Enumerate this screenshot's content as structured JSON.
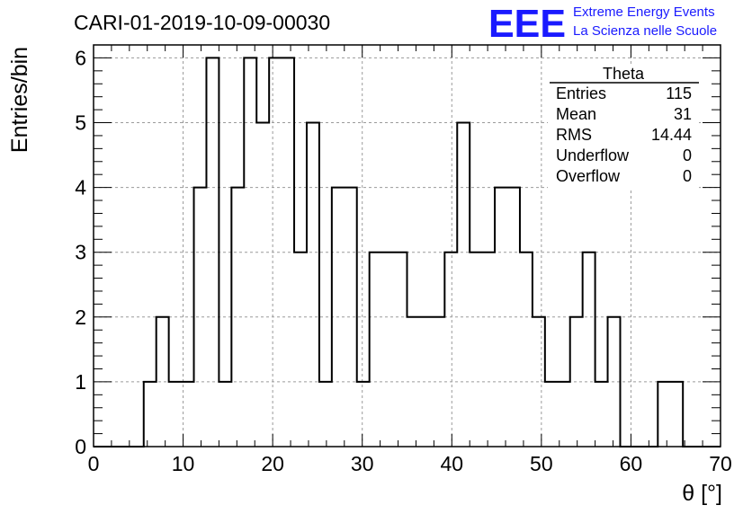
{
  "header": {
    "run_title": "CARI-01-2019-10-09-00030",
    "logo_text": "EEE",
    "logo_line1": "Extreme Energy Events",
    "logo_line2": "La Scienza nelle Scuole",
    "logo_color": "#1a1aff"
  },
  "stats_box": {
    "title": "Theta",
    "rows": [
      {
        "label": "Entries",
        "value": "115"
      },
      {
        "label": "Mean",
        "value": "31"
      },
      {
        "label": "RMS",
        "value": "14.44"
      },
      {
        "label": "Underflow",
        "value": "0"
      },
      {
        "label": "Overflow",
        "value": "0"
      }
    ]
  },
  "chart_data": {
    "type": "histogram",
    "xlabel": "θ [°]",
    "ylabel": "Entries/bin",
    "xlim": [
      0,
      70
    ],
    "ylim": [
      0,
      6.2
    ],
    "grid": true,
    "x_ticks": [
      0,
      10,
      20,
      30,
      40,
      50,
      60,
      70
    ],
    "y_ticks": [
      0,
      1,
      2,
      3,
      4,
      5,
      6
    ],
    "bin_edges": [
      0,
      1.4,
      2.8,
      4.2,
      5.6,
      7.0,
      8.4,
      9.8,
      11.2,
      12.6,
      14.0,
      15.4,
      16.8,
      18.2,
      19.6,
      21.0,
      22.4,
      23.8,
      25.2,
      26.6,
      28.0,
      29.4,
      30.8,
      32.2,
      33.6,
      35.0,
      36.4,
      37.8,
      39.2,
      40.6,
      42.0,
      43.4,
      44.8,
      46.2,
      47.6,
      49.0,
      50.4,
      51.8,
      53.2,
      54.6,
      56.0,
      57.4,
      58.8,
      60.2,
      61.6,
      63.0,
      64.4,
      65.8,
      67.2,
      68.6,
      70.0
    ],
    "counts": [
      0,
      0,
      0,
      0,
      1,
      2,
      1,
      1,
      4,
      6,
      1,
      4,
      6,
      5,
      6,
      6,
      3,
      5,
      1,
      4,
      4,
      1,
      3,
      3,
      3,
      2,
      2,
      2,
      3,
      5,
      3,
      3,
      4,
      4,
      3,
      2,
      1,
      1,
      2,
      3,
      1,
      2,
      0,
      0,
      0,
      1,
      1,
      0,
      0,
      0
    ]
  }
}
